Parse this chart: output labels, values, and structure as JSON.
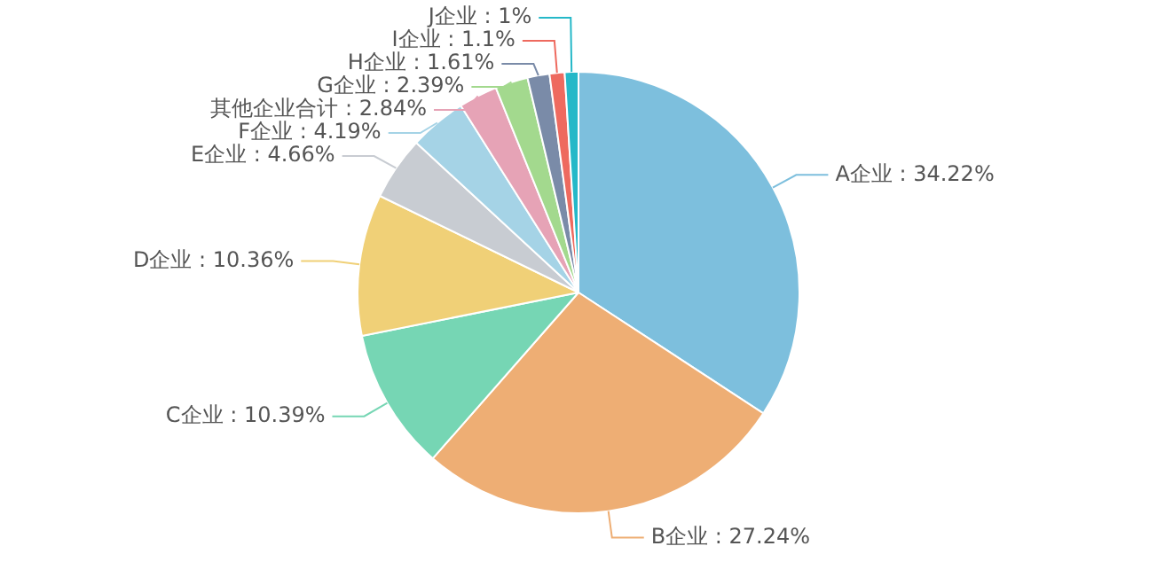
{
  "chart_data": {
    "type": "pie",
    "categories": [
      "A企业",
      "B企业",
      "C企业",
      "D企业",
      "E企业",
      "F企业",
      "其他企业合计",
      "G企业",
      "H企业",
      "I企业",
      "J企业"
    ],
    "values": [
      34.22,
      27.24,
      10.39,
      10.36,
      4.66,
      4.19,
      2.84,
      2.39,
      1.61,
      1.1,
      1
    ],
    "value_labels": [
      "34.22%",
      "27.24%",
      "10.39%",
      "10.36%",
      "4.66%",
      "4.19%",
      "2.84%",
      "2.39%",
      "1.61%",
      "1.1%",
      "1%"
    ],
    "colors": [
      "#7dbfdd",
      "#eeae74",
      "#76d6b4",
      "#f0d077",
      "#c8ccd2",
      "#a5d3e6",
      "#e6a3b6",
      "#a3d98e",
      "#7a8ba8",
      "#ee6a5f",
      "#25b8c8"
    ],
    "legend": false
  }
}
